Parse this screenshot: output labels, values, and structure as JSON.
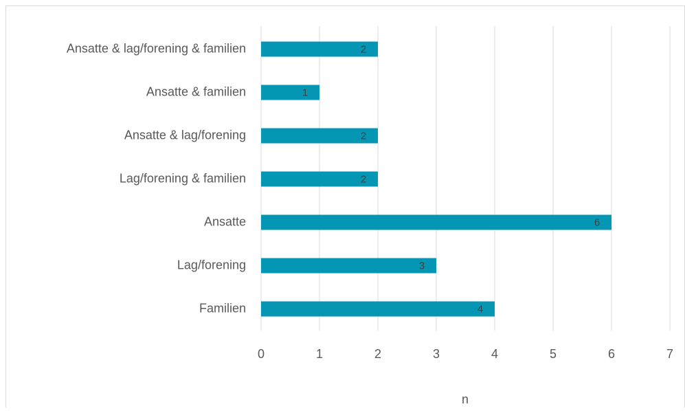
{
  "chart_data": {
    "type": "bar",
    "orientation": "horizontal",
    "categories": [
      "Ansatte & lag/forening & familien",
      "Ansatte & familien",
      "Ansatte & lag/forening",
      "Lag/forening & familien",
      "Ansatte",
      "Lag/forening",
      "Familien"
    ],
    "values": [
      2,
      1,
      2,
      2,
      6,
      3,
      4
    ],
    "color": "#0596b4",
    "x_label": "n",
    "xlim": [
      0,
      7
    ],
    "xticks": [
      0,
      1,
      2,
      3,
      4,
      5,
      6,
      7
    ],
    "grid": true
  }
}
